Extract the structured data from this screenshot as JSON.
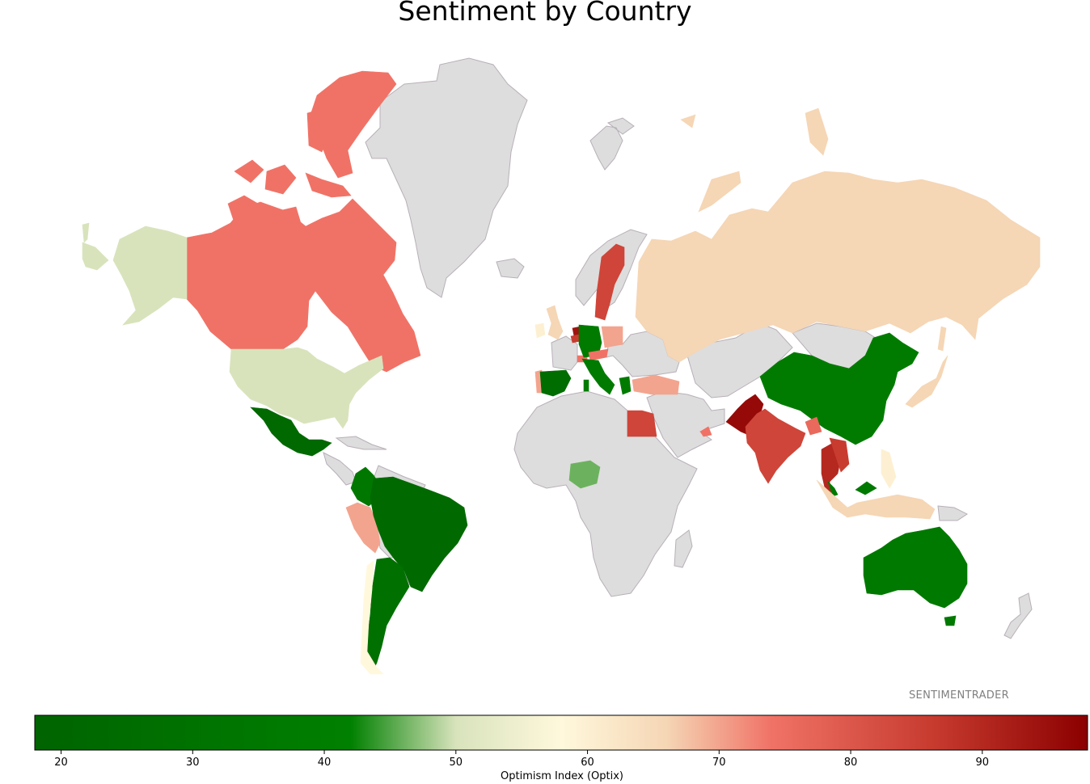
{
  "chart_data": {
    "type": "choropleth",
    "title": "Sentiment by Country",
    "watermark": "SENTIMENTRADER",
    "colorbar": {
      "label": "Optimism Index (Optix)",
      "range": [
        18,
        98
      ],
      "ticks": [
        20,
        30,
        40,
        50,
        60,
        70,
        80,
        90
      ],
      "colors": [
        {
          "value": 18,
          "color": "#006400"
        },
        {
          "value": 42,
          "color": "#008000"
        },
        {
          "value": 50,
          "color": "#d8e3bc"
        },
        {
          "value": 58,
          "color": "#fff8dc"
        },
        {
          "value": 66,
          "color": "#f5d6b5"
        },
        {
          "value": 74,
          "color": "#f07266"
        },
        {
          "value": 86,
          "color": "#c83c30"
        },
        {
          "value": 98,
          "color": "#8b0000"
        }
      ]
    },
    "no_data_color": "#dddddd",
    "countries": [
      {
        "name": "Canada",
        "value": 74
      },
      {
        "name": "United States",
        "value": 50
      },
      {
        "name": "Alaska (US)",
        "value": 50
      },
      {
        "name": "Mexico",
        "value": 22
      },
      {
        "name": "Colombia",
        "value": 35
      },
      {
        "name": "Peru",
        "value": 70
      },
      {
        "name": "Brazil",
        "value": 22
      },
      {
        "name": "Argentina",
        "value": 28
      },
      {
        "name": "Chile",
        "value": 58
      },
      {
        "name": "United Kingdom",
        "value": 66
      },
      {
        "name": "Ireland",
        "value": 60
      },
      {
        "name": "Portugal",
        "value": 70
      },
      {
        "name": "Spain",
        "value": 26
      },
      {
        "name": "Netherlands",
        "value": 94
      },
      {
        "name": "Belgium",
        "value": 86
      },
      {
        "name": "Switzerland",
        "value": 74
      },
      {
        "name": "Germany",
        "value": 38
      },
      {
        "name": "Austria",
        "value": 74
      },
      {
        "name": "Italy",
        "value": 38
      },
      {
        "name": "Greece",
        "value": 38
      },
      {
        "name": "Poland",
        "value": 70
      },
      {
        "name": "Sweden",
        "value": 84
      },
      {
        "name": "Turkey",
        "value": 70
      },
      {
        "name": "Russia",
        "value": 66
      },
      {
        "name": "China",
        "value": 38
      },
      {
        "name": "Japan",
        "value": 66
      },
      {
        "name": "Pakistan",
        "value": 96
      },
      {
        "name": "India",
        "value": 84
      },
      {
        "name": "Bangladesh",
        "value": 76
      },
      {
        "name": "Thailand",
        "value": 90
      },
      {
        "name": "Vietnam",
        "value": 86
      },
      {
        "name": "Malaysia",
        "value": 36
      },
      {
        "name": "Philippines",
        "value": 60
      },
      {
        "name": "Indonesia",
        "value": 66
      },
      {
        "name": "Australia",
        "value": 36
      },
      {
        "name": "Egypt",
        "value": 84
      },
      {
        "name": "Nigeria",
        "value": 46
      },
      {
        "name": "United Arab Emirates",
        "value": 74
      }
    ]
  }
}
